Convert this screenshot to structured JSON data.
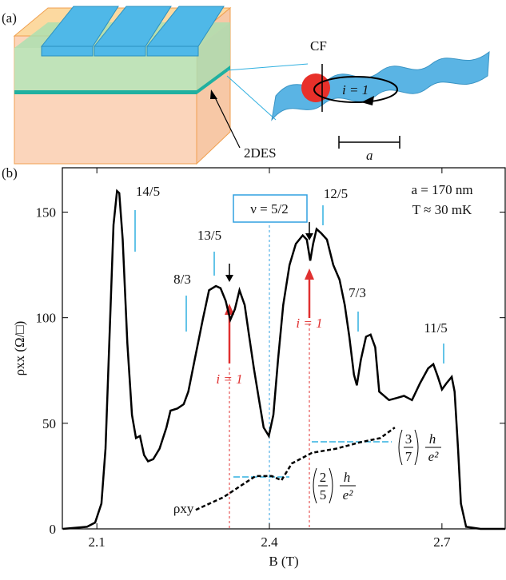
{
  "panel_a": {
    "label": "(a)",
    "cf": "CF",
    "orbit": "i = 1",
    "period": "a",
    "layer": "2DES"
  },
  "panel_b_label": "(b)",
  "chart_data": {
    "type": "line",
    "x_label": "B (T)",
    "y_label": "ρxx (Ω/□)",
    "xlim": [
      2.04,
      2.81
    ],
    "ylim": [
      0,
      171
    ],
    "xticks": [
      2.1,
      2.4,
      2.7
    ],
    "yticks": [
      0,
      50,
      100,
      150
    ],
    "annotations": [
      "14/5",
      "13/5",
      "8/3",
      "12/5",
      "7/3",
      "11/5",
      "ν = 5/2",
      "a = 170 nm",
      "T ≈ 30 mK",
      "i = 1",
      "i = 1"
    ],
    "plateaus": [
      {
        "num": "2",
        "den": "5",
        "h": "h",
        "e": "e²"
      },
      {
        "num": "3",
        "den": "7",
        "h": "h",
        "e": "e²"
      }
    ],
    "series": [
      {
        "color": "#000000",
        "x": [
          2.041,
          2.083,
          2.097,
          2.108,
          2.115,
          2.122,
          2.129,
          2.135,
          2.139,
          2.145,
          2.153,
          2.161,
          2.168,
          2.175,
          2.182,
          2.189,
          2.198,
          2.209,
          2.221,
          2.228,
          2.24,
          2.251,
          2.259,
          2.27,
          2.284,
          2.295,
          2.307,
          2.315,
          2.324,
          2.332,
          2.34,
          2.348,
          2.357,
          2.365,
          2.373,
          2.382,
          2.39,
          2.399,
          2.407,
          2.415,
          2.424,
          2.435,
          2.446,
          2.458,
          2.465,
          2.471,
          2.476,
          2.482,
          2.49,
          2.5,
          2.511,
          2.522,
          2.531,
          2.539,
          2.547,
          2.552,
          2.559,
          2.568,
          2.576,
          2.584,
          2.591,
          2.608,
          2.622,
          2.634,
          2.648,
          2.662,
          2.676,
          2.685,
          2.693,
          2.7,
          2.708,
          2.717,
          2.722,
          2.728,
          2.733,
          2.742,
          2.767,
          2.81
        ],
        "values": [
          0,
          1,
          3,
          12,
          38,
          91,
          144,
          160,
          159,
          137,
          88,
          54,
          43,
          44,
          35,
          32,
          33,
          38,
          48,
          56,
          57,
          59,
          65,
          80,
          99,
          113,
          115,
          114,
          108,
          99,
          104,
          113,
          106,
          91,
          76,
          61,
          48,
          44,
          54,
          80,
          106,
          125,
          135,
          139,
          137,
          127,
          135,
          142,
          140,
          137,
          125,
          118,
          106,
          91,
          73,
          68,
          80,
          91,
          92,
          86,
          65,
          61,
          62,
          63,
          61,
          69,
          76,
          78,
          72,
          66,
          69,
          72,
          65,
          38,
          12,
          1,
          0,
          0
        ]
      },
      {
        "name": "ρxy",
        "color": "#000000",
        "dashed": true,
        "x": [
          2.272,
          2.32,
          2.348,
          2.376,
          2.404,
          2.421,
          2.439,
          2.474,
          2.516,
          2.558,
          2.593,
          2.618
        ],
        "values": [
          9,
          15,
          20,
          25,
          25,
          23,
          31,
          36,
          38,
          41,
          43,
          48
        ]
      }
    ]
  }
}
